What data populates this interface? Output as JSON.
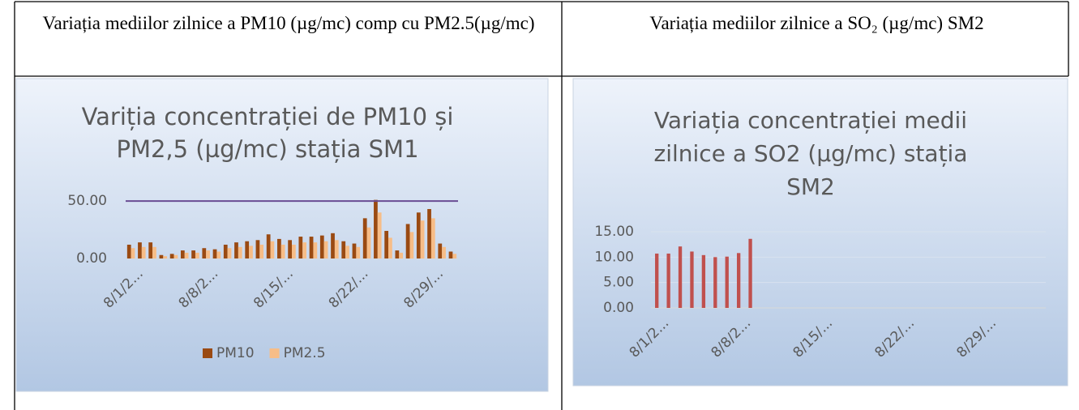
{
  "table": {
    "headers": [
      "Variația mediilor zilnice a PM10 (µg/mc) comp cu PM2.5(µg/mc)",
      "Variația mediilor zilnice a SO₂ (µg/mc) SM2"
    ],
    "charts": [
      {
        "type": "bar",
        "title": "Variția concentrației de PM10 și PM2,5 (µg/mc)  stația SM1",
        "categories": [
          "8/1/2...",
          null,
          null,
          null,
          null,
          null,
          null,
          "8/8/2...",
          null,
          null,
          null,
          null,
          null,
          null,
          "8/15/...",
          null,
          null,
          null,
          null,
          null,
          null,
          "8/22/...",
          null,
          null,
          null,
          null,
          null,
          null,
          "8/29/...",
          null,
          null
        ],
        "series": [
          {
            "name": "PM10",
            "color": "#9a4a12",
            "values": [
              12,
              14,
              14,
              3,
              4,
              7,
              7,
              9,
              8,
              12,
              14,
              15,
              16,
              21,
              17,
              16,
              19,
              19,
              20,
              22,
              15,
              13,
              35,
              51,
              24,
              7,
              30,
              40,
              43,
              13,
              6
            ]
          },
          {
            "name": "PM2.5",
            "color": "#f7bd87",
            "values": [
              9,
              10,
              10,
              2,
              3,
              5,
              5,
              7,
              6,
              9,
              10,
              11,
              12,
              15,
              12,
              12,
              14,
              14,
              15,
              16,
              11,
              10,
              27,
              40,
              18,
              5,
              23,
              33,
              35,
              10,
              4
            ]
          }
        ],
        "reference_line": 50,
        "reference_color": "#6a4c93",
        "ylim": [
          0,
          55
        ],
        "yticks": [
          {
            "value": 0,
            "label": "0.00"
          },
          {
            "value": 50,
            "label": "50.00"
          }
        ],
        "grid": false,
        "legend": "bottom"
      },
      {
        "type": "bar",
        "title": "Variația concentrației medii zilnice a SO2 (µg/mc) stația SM2",
        "categories": [
          "8/1/2...",
          null,
          null,
          null,
          null,
          null,
          null,
          "8/8/2...",
          null,
          null,
          null,
          null,
          null,
          null,
          "8/15/...",
          null,
          null,
          null,
          null,
          null,
          null,
          "8/22/...",
          null,
          null,
          null,
          null,
          null,
          null,
          "8/29/...",
          null,
          null
        ],
        "series": [
          {
            "color": "#c0504d",
            "values": [
              10.7,
              10.7,
              12.1,
              11.1,
              10.4,
              10.0,
              10.1,
              10.8,
              13.6,
              null,
              null,
              null,
              null,
              null,
              null,
              null,
              null,
              null,
              null,
              null,
              null,
              null,
              null,
              null,
              null,
              null,
              null,
              null,
              null,
              null,
              null
            ]
          }
        ],
        "ylim": [
          0,
          15
        ],
        "yticks": [
          {
            "value": 0,
            "label": "0.00"
          },
          {
            "value": 5,
            "label": "5.00"
          },
          {
            "value": 10,
            "label": "10.00"
          },
          {
            "value": 15,
            "label": "15.00"
          }
        ],
        "grid": true
      }
    ]
  }
}
